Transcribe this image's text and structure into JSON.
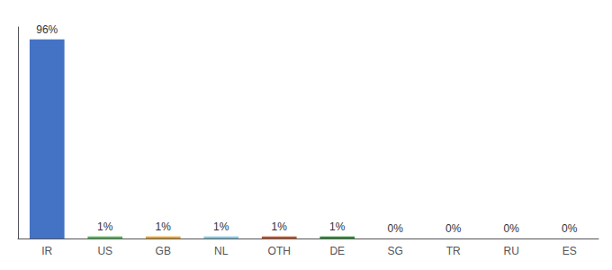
{
  "chart_data": {
    "type": "bar",
    "categories": [
      "IR",
      "US",
      "GB",
      "NL",
      "OTH",
      "DE",
      "SG",
      "TR",
      "RU",
      "ES"
    ],
    "values": [
      96,
      1,
      1,
      1,
      1,
      1,
      0.0,
      0.0,
      0.0,
      0.0
    ],
    "value_labels": [
      "96%",
      "1%",
      "1%",
      "1%",
      "1%",
      "1%",
      "0%",
      "0%",
      "0%",
      "0%"
    ],
    "colors": [
      "#4472c4",
      "#4db34d",
      "#e8a020",
      "#7ec8e3",
      "#c05020",
      "#2d8a2d",
      "#4472c4",
      "#4472c4",
      "#4472c4",
      "#4472c4"
    ],
    "ylim": [
      0,
      102
    ],
    "data_labels": true,
    "tick_labels": "x",
    "grid": false
  }
}
